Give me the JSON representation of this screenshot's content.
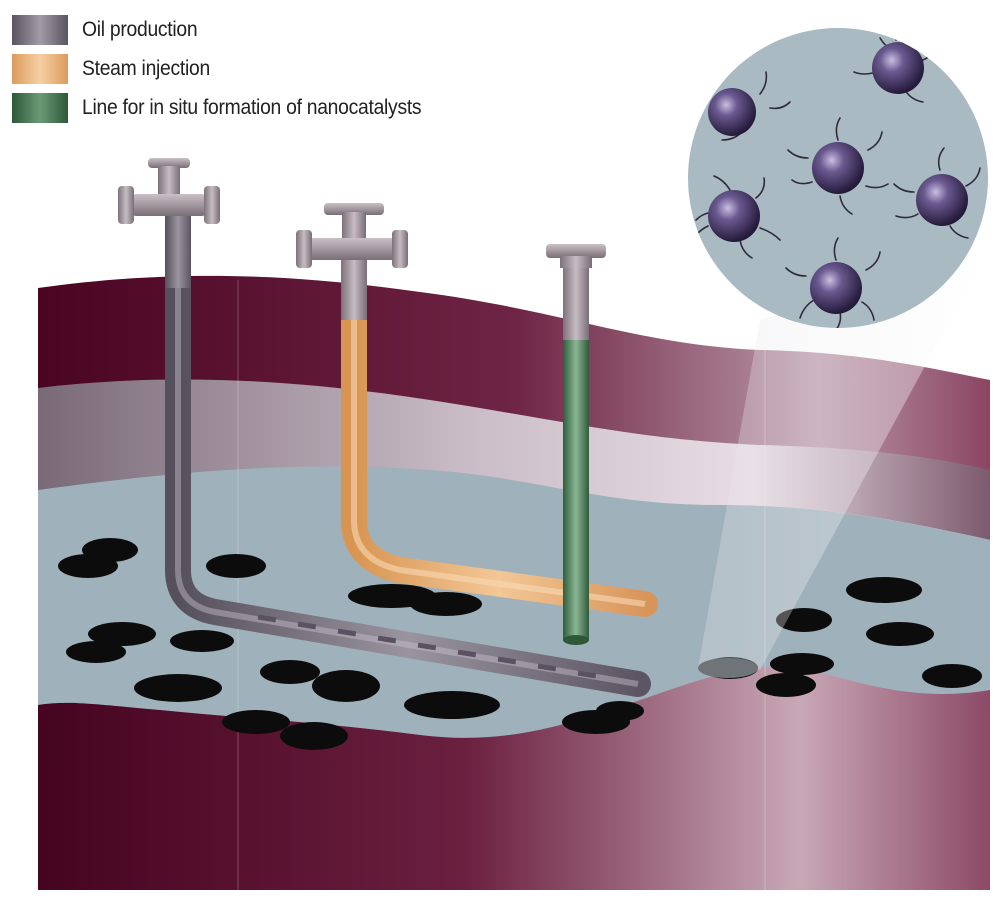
{
  "legend": {
    "items": [
      {
        "label": "Oil production",
        "color": "#76707e"
      },
      {
        "label": "Steam injection",
        "color": "#e7ae76"
      },
      {
        "label": "Line for in situ formation of nanocatalysts",
        "color": "#3c6a47"
      }
    ]
  },
  "colors": {
    "rock_dark": "#4a0522",
    "rock_mid": "#7a3a55",
    "rock_light": "#cfb3bf",
    "reservoir": "#9fb1bb",
    "oil_droplet": "#0c0c0c",
    "nanoparticle": "#4b3a66",
    "wellhead": "#9a8f97"
  },
  "icons": [
    "oil-production-wellhead-icon",
    "steam-injection-wellhead-icon",
    "catalyst-line-cap-icon",
    "nanoparticle-icon",
    "oil-droplet-icon"
  ]
}
